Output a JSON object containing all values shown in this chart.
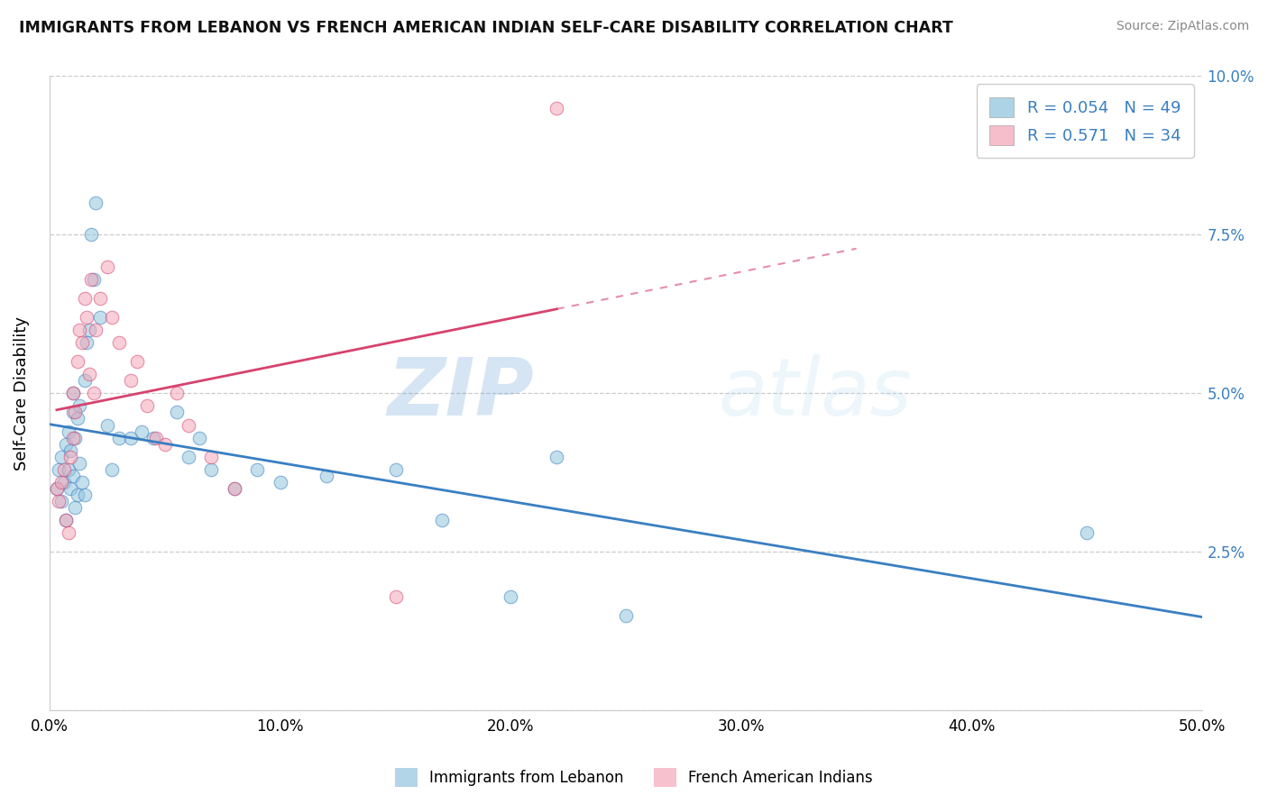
{
  "title": "IMMIGRANTS FROM LEBANON VS FRENCH AMERICAN INDIAN SELF-CARE DISABILITY CORRELATION CHART",
  "source": "Source: ZipAtlas.com",
  "ylabel": "Self-Care Disability",
  "xlim": [
    0.0,
    0.5
  ],
  "ylim": [
    0.0,
    0.1
  ],
  "xticks": [
    0.0,
    0.1,
    0.2,
    0.3,
    0.4,
    0.5
  ],
  "yticks": [
    0.0,
    0.025,
    0.05,
    0.075,
    0.1
  ],
  "xticklabels": [
    "0.0%",
    "10.0%",
    "20.0%",
    "30.0%",
    "40.0%",
    "50.0%"
  ],
  "yticklabels_right": [
    "",
    "2.5%",
    "5.0%",
    "7.5%",
    "10.0%"
  ],
  "blue_color": "#92c5de",
  "pink_color": "#f4a7b9",
  "blue_line_color": "#3a7fc1",
  "pink_line_color": "#d6436e",
  "R_blue": 0.054,
  "N_blue": 49,
  "R_pink": 0.571,
  "N_pink": 34,
  "legend1": "Immigrants from Lebanon",
  "legend2": "French American Indians",
  "watermark_zip": "ZIP",
  "watermark_atlas": "atlas",
  "blue_x": [
    0.003,
    0.004,
    0.005,
    0.005,
    0.006,
    0.007,
    0.007,
    0.008,
    0.008,
    0.009,
    0.009,
    0.01,
    0.01,
    0.01,
    0.011,
    0.011,
    0.012,
    0.012,
    0.013,
    0.013,
    0.014,
    0.015,
    0.015,
    0.016,
    0.017,
    0.018,
    0.019,
    0.02,
    0.022,
    0.025,
    0.027,
    0.03,
    0.035,
    0.04,
    0.045,
    0.055,
    0.06,
    0.065,
    0.07,
    0.08,
    0.09,
    0.1,
    0.12,
    0.15,
    0.17,
    0.2,
    0.22,
    0.45,
    0.25
  ],
  "blue_y": [
    0.035,
    0.038,
    0.04,
    0.033,
    0.036,
    0.042,
    0.03,
    0.044,
    0.038,
    0.041,
    0.035,
    0.05,
    0.047,
    0.037,
    0.043,
    0.032,
    0.046,
    0.034,
    0.048,
    0.039,
    0.036,
    0.052,
    0.034,
    0.058,
    0.06,
    0.075,
    0.068,
    0.08,
    0.062,
    0.045,
    0.038,
    0.043,
    0.043,
    0.044,
    0.043,
    0.047,
    0.04,
    0.043,
    0.038,
    0.035,
    0.038,
    0.036,
    0.037,
    0.038,
    0.03,
    0.018,
    0.04,
    0.028,
    0.015
  ],
  "pink_x": [
    0.003,
    0.004,
    0.005,
    0.006,
    0.007,
    0.008,
    0.009,
    0.01,
    0.01,
    0.011,
    0.012,
    0.013,
    0.014,
    0.015,
    0.016,
    0.017,
    0.018,
    0.019,
    0.02,
    0.022,
    0.025,
    0.027,
    0.03,
    0.035,
    0.038,
    0.042,
    0.046,
    0.05,
    0.055,
    0.06,
    0.07,
    0.08,
    0.15,
    0.22
  ],
  "pink_y": [
    0.035,
    0.033,
    0.036,
    0.038,
    0.03,
    0.028,
    0.04,
    0.05,
    0.043,
    0.047,
    0.055,
    0.06,
    0.058,
    0.065,
    0.062,
    0.053,
    0.068,
    0.05,
    0.06,
    0.065,
    0.07,
    0.062,
    0.058,
    0.052,
    0.055,
    0.048,
    0.043,
    0.042,
    0.05,
    0.045,
    0.04,
    0.035,
    0.018,
    0.095
  ],
  "pink_regression_x_start": 0.003,
  "pink_regression_x_end": 0.22,
  "pink_regression_x_dashed_end": 0.35
}
